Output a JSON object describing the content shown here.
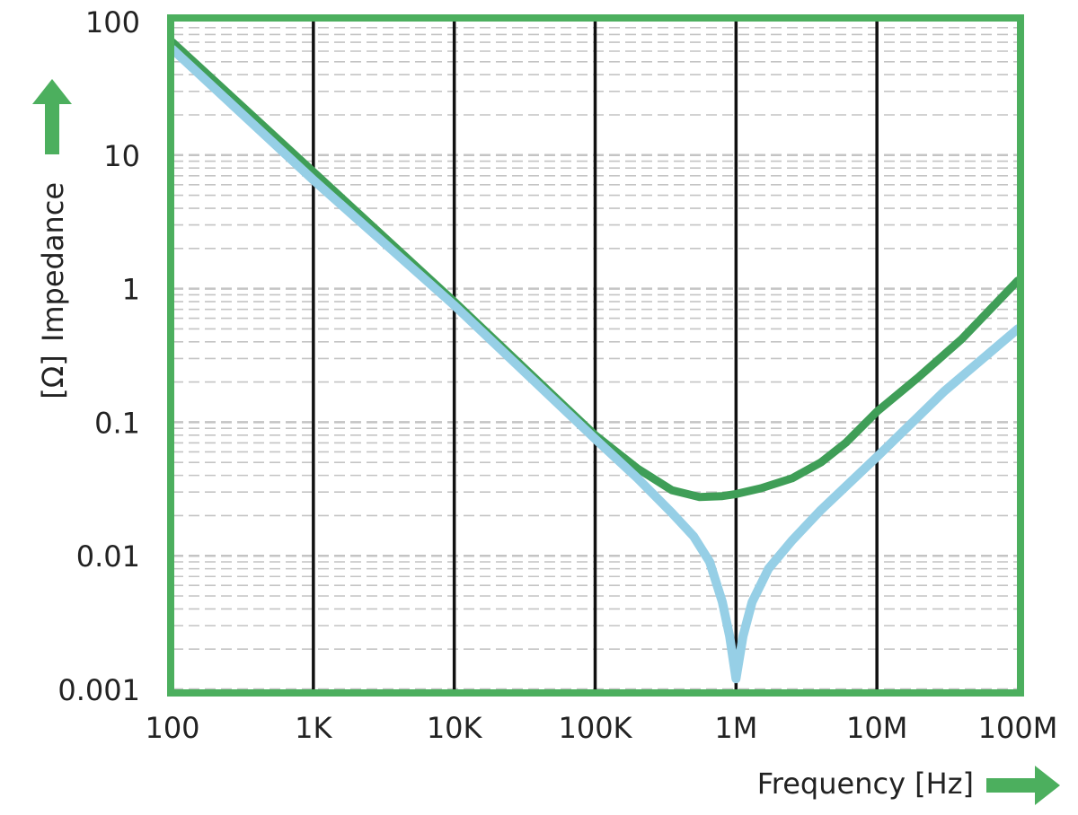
{
  "chart_data": {
    "type": "line",
    "xscale": "log",
    "yscale": "log",
    "xlim": [
      100,
      100000000
    ],
    "ylim": [
      0.001,
      100
    ],
    "xlabel": "Frequency [Hz]",
    "ylabel": "Impedance",
    "ylabel_unit": "[Ω]",
    "x_ticks": [
      {
        "value": 100,
        "label": "100"
      },
      {
        "value": 1000,
        "label": "1K"
      },
      {
        "value": 10000,
        "label": "10K"
      },
      {
        "value": 100000,
        "label": "100K"
      },
      {
        "value": 1000000,
        "label": "1M"
      },
      {
        "value": 10000000,
        "label": "10M"
      },
      {
        "value": 100000000,
        "label": "100M"
      }
    ],
    "y_ticks": [
      {
        "value": 100,
        "label": "100"
      },
      {
        "value": 10,
        "label": "10"
      },
      {
        "value": 1,
        "label": "1"
      },
      {
        "value": 0.1,
        "label": "0.1"
      },
      {
        "value": 0.01,
        "label": "0.01"
      },
      {
        "value": 0.001,
        "label": "0.001"
      }
    ],
    "grid": {
      "major_x": true,
      "minor_y": true
    },
    "colors": {
      "frame": "#4caf5e",
      "arrow": "#4caf5e",
      "major_grid": "#111111",
      "minor_grid": "#c4c4c4"
    },
    "series": [
      {
        "color": "#3f9e57",
        "points": [
          [
            100,
            70
          ],
          [
            1000,
            7.5
          ],
          [
            10000,
            0.8
          ],
          [
            100000,
            0.08
          ],
          [
            200000,
            0.045
          ],
          [
            350000,
            0.031
          ],
          [
            550000,
            0.0275
          ],
          [
            800000,
            0.028
          ],
          [
            1000000,
            0.029
          ],
          [
            1500000,
            0.032
          ],
          [
            2500000,
            0.038
          ],
          [
            4000000,
            0.05
          ],
          [
            6000000,
            0.07
          ],
          [
            10000000,
            0.12
          ],
          [
            20000000,
            0.22
          ],
          [
            40000000,
            0.42
          ],
          [
            100000000,
            1.15
          ]
        ]
      },
      {
        "color": "#96cfe6",
        "points": [
          [
            100,
            62
          ],
          [
            1000,
            6.5
          ],
          [
            10000,
            0.75
          ],
          [
            100000,
            0.075
          ],
          [
            200000,
            0.038
          ],
          [
            350000,
            0.021
          ],
          [
            500000,
            0.014
          ],
          [
            650000,
            0.009
          ],
          [
            800000,
            0.0045
          ],
          [
            900000,
            0.0025
          ],
          [
            1000000,
            0.0012
          ],
          [
            1120000,
            0.0025
          ],
          [
            1300000,
            0.0045
          ],
          [
            1700000,
            0.008
          ],
          [
            2500000,
            0.013
          ],
          [
            4000000,
            0.022
          ],
          [
            10000000,
            0.055
          ],
          [
            30000000,
            0.17
          ],
          [
            100000000,
            0.5
          ]
        ]
      }
    ]
  }
}
